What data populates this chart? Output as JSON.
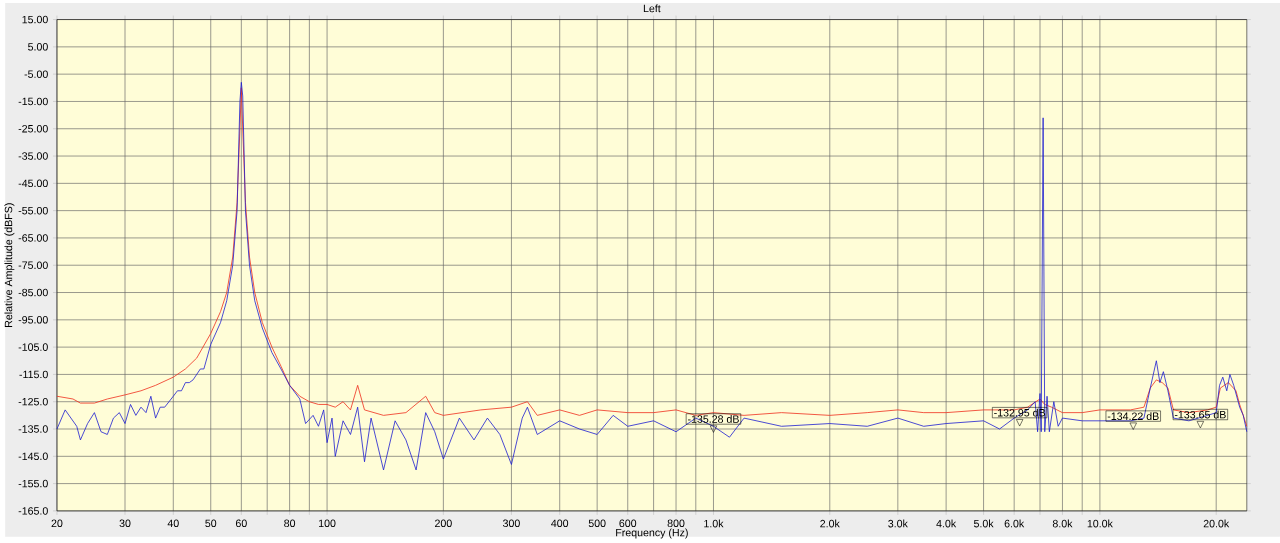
{
  "chart_data": {
    "type": "line",
    "title": "Left",
    "xlabel": "Frequency (Hz)",
    "ylabel": "Relative Amplitude (dBFS)",
    "log": "x",
    "grid": true,
    "xlim": [
      20,
      24000
    ],
    "ylim": [
      -165,
      15
    ],
    "xticks": [
      20,
      30,
      40,
      50,
      60,
      {
        "value": 70,
        "label": null
      },
      80,
      {
        "value": 90,
        "label": null
      },
      100,
      200,
      300,
      400,
      500,
      600,
      {
        "value": 700,
        "label": null
      },
      800,
      {
        "value": 900,
        "label": null
      },
      {
        "value": 1000,
        "label": "1.0k"
      },
      {
        "value": 2000,
        "label": "2.0k"
      },
      {
        "value": 3000,
        "label": "3.0k"
      },
      {
        "value": 4000,
        "label": "4.0k"
      },
      {
        "value": 5000,
        "label": "5.0k"
      },
      {
        "value": 6000,
        "label": "6.0k"
      },
      {
        "value": 7000,
        "label": null
      },
      {
        "value": 8000,
        "label": "8.0k"
      },
      {
        "value": 9000,
        "label": null
      },
      {
        "value": 10000,
        "label": "10.0k"
      },
      {
        "value": 20000,
        "label": "20.0k"
      }
    ],
    "yticks": [
      {
        "value": 15,
        "label": "15.00"
      },
      {
        "value": 5,
        "label": "5.00"
      },
      {
        "value": -5,
        "label": "-5.00"
      },
      {
        "value": -15,
        "label": "-15.00"
      },
      {
        "value": -25,
        "label": "-25.00"
      },
      {
        "value": -35,
        "label": "-35.00"
      },
      {
        "value": -45,
        "label": "-45.00"
      },
      {
        "value": -55,
        "label": "-55.00"
      },
      {
        "value": -65,
        "label": "-65.00"
      },
      {
        "value": -75,
        "label": "-75.00"
      },
      {
        "value": -85,
        "label": "-85.00"
      },
      {
        "value": -95,
        "label": "-95.00"
      },
      {
        "value": -105,
        "label": "-105.0"
      },
      {
        "value": -115,
        "label": "-115.0"
      },
      {
        "value": -125,
        "label": "-125.0"
      },
      {
        "value": -135,
        "label": "-135.0"
      },
      {
        "value": -145,
        "label": "-145.0"
      },
      {
        "value": -155,
        "label": "-155.0"
      },
      {
        "value": -165,
        "label": "-165.0"
      }
    ],
    "series": [
      {
        "color": "#ee2c1c",
        "x": [
          20,
          22,
          23,
          25,
          27,
          30,
          33,
          36,
          40,
          43,
          46,
          50,
          53,
          55,
          57,
          58.5,
          59.5,
          60,
          60.5,
          61.5,
          63,
          65,
          68,
          72,
          76,
          80,
          85,
          90,
          95,
          100,
          105,
          110,
          115,
          120,
          125,
          140,
          160,
          180,
          190,
          200,
          250,
          300,
          330,
          350,
          400,
          450,
          500,
          600,
          700,
          800,
          900,
          1000,
          1200,
          1500,
          2000,
          2500,
          3000,
          3500,
          4000,
          5000,
          6000,
          6500,
          7000,
          7200,
          7500,
          8000,
          9000,
          10000,
          12000,
          13000,
          13500,
          14000,
          14500,
          15000,
          15500,
          17000,
          19000,
          20000,
          20500,
          21500,
          22500,
          23000,
          24000
        ],
        "values": [
          -123,
          -124,
          -125.5,
          -125.5,
          -124,
          -122.5,
          -121,
          -119,
          -116,
          -113,
          -109,
          -100,
          -92,
          -85,
          -72,
          -52,
          -25,
          -10,
          -25,
          -52,
          -72,
          -85,
          -96,
          -105,
          -112,
          -119,
          -123,
          -125,
          -126,
          -126,
          -127,
          -125,
          -128,
          -119,
          -128,
          -130,
          -129,
          -123,
          -129,
          -130,
          -128,
          -127,
          -125,
          -130,
          -128,
          -130,
          -128,
          -129,
          -129,
          -128,
          -130,
          -129,
          -130,
          -129,
          -130,
          -129,
          -128,
          -129,
          -129,
          -128,
          -128,
          -127,
          -124,
          -126,
          -127,
          -129,
          -129,
          -128,
          -128,
          -127,
          -120,
          -117,
          -118,
          -120,
          -128,
          -129,
          -128,
          -127,
          -120,
          -118,
          -121,
          -126,
          -134
        ]
      },
      {
        "color": "#1c1cd0",
        "x": [
          20,
          21,
          22.5,
          23,
          24,
          25,
          26,
          27,
          28,
          29,
          30,
          31,
          32,
          33,
          34,
          35,
          36,
          37,
          38,
          40,
          41,
          42,
          43,
          44,
          45,
          47,
          48,
          50,
          53,
          55,
          57,
          58.5,
          59.5,
          60,
          60.5,
          61.5,
          63,
          65,
          68,
          72,
          76,
          80,
          85,
          88,
          92,
          95,
          98,
          100,
          103,
          105,
          110,
          115,
          120,
          125,
          130,
          140,
          150,
          160,
          170,
          180,
          190,
          200,
          220,
          240,
          260,
          280,
          300,
          320,
          330,
          350,
          400,
          450,
          500,
          550,
          600,
          700,
          800,
          900,
          1000,
          1100,
          1200,
          1500,
          2000,
          2500,
          3000,
          3500,
          4000,
          5000,
          5500,
          6000,
          6500,
          6800,
          6900,
          7000,
          7050,
          7130,
          7200,
          7300,
          7400,
          7600,
          7800,
          8000,
          9000,
          10000,
          12000,
          13000,
          13500,
          14000,
          14300,
          14600,
          15000,
          15500,
          17000,
          19000,
          20000,
          20400,
          20800,
          21300,
          21700,
          22200,
          23000,
          23500,
          24000
        ],
        "values": [
          -135,
          -128,
          -134,
          -139,
          -133,
          -129,
          -136,
          -137,
          -131,
          -129,
          -133,
          -126,
          -130,
          -127,
          -129,
          -123,
          -131,
          -127,
          -127,
          -123,
          -121,
          -121,
          -118,
          -118,
          -117,
          -113,
          -113,
          -104,
          -96,
          -88,
          -75,
          -55,
          -15,
          -8,
          -13,
          -55,
          -75,
          -88,
          -98,
          -107,
          -113,
          -119,
          -124,
          -133,
          -130,
          -134,
          -128,
          -140,
          -131,
          -145,
          -132,
          -137,
          -127,
          -147,
          -131,
          -150,
          -132,
          -139,
          -150,
          -129,
          -136,
          -146,
          -131,
          -139,
          -131,
          -137,
          -148,
          -131,
          -127,
          -137,
          -132,
          -135,
          -137,
          -130,
          -134,
          -132,
          -136,
          -131,
          -134,
          -138,
          -131,
          -134,
          -133,
          -134,
          -131,
          -134,
          -133,
          -132,
          -135,
          -131,
          -128,
          -125,
          -136,
          -122,
          -136,
          -21,
          -136,
          -123,
          -136,
          -125,
          -134,
          -131,
          -132,
          -132,
          -132,
          -131,
          -120,
          -110,
          -118,
          -114,
          -121,
          -131,
          -132,
          -130,
          -129,
          -119,
          -116,
          -121,
          -115,
          -119,
          -127,
          -130,
          -136
        ]
      }
    ],
    "annotations": [
      {
        "text": "-135.28 dB",
        "x": 1000,
        "y": -135.28
      },
      {
        "text": "-132.95 dB",
        "x": 6200,
        "y": -132.95
      },
      {
        "text": "-134.22 dB",
        "x": 12200,
        "y": -134.22
      },
      {
        "text": "-133.65 dB",
        "x": 18200,
        "y": -133.65
      }
    ]
  }
}
